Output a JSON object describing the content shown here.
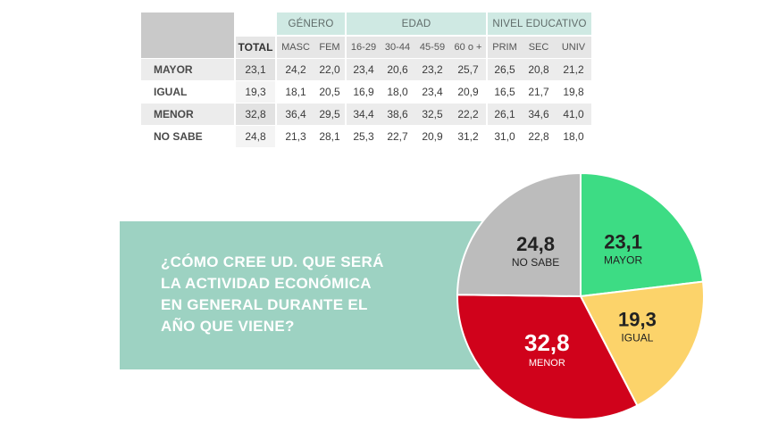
{
  "chart_data": [
    {
      "type": "table",
      "group_headers": [
        {
          "label": "GÉNERO",
          "span": 2
        },
        {
          "label": "EDAD",
          "span": 4
        },
        {
          "label": "NIVEL EDUCATIVO",
          "span": 3
        }
      ],
      "columns": [
        "TOTAL",
        "MASC",
        "FEM",
        "16-29",
        "30-44",
        "45-59",
        "60 o +",
        "PRIM",
        "SEC",
        "UNIV"
      ],
      "rows": [
        {
          "label": "MAYOR",
          "values": [
            "23,1",
            "24,2",
            "22,0",
            "23,4",
            "20,6",
            "23,2",
            "25,7",
            "26,5",
            "20,8",
            "21,2"
          ]
        },
        {
          "label": "IGUAL",
          "values": [
            "19,3",
            "18,1",
            "20,5",
            "16,9",
            "18,0",
            "23,4",
            "20,9",
            "16,5",
            "21,7",
            "19,8"
          ]
        },
        {
          "label": "MENOR",
          "values": [
            "32,8",
            "36,4",
            "29,5",
            "34,4",
            "38,6",
            "32,5",
            "22,2",
            "26,1",
            "34,6",
            "41,0"
          ]
        },
        {
          "label": "NO SABE",
          "values": [
            "24,8",
            "21,3",
            "28,1",
            "25,3",
            "22,7",
            "20,9",
            "31,2",
            "31,0",
            "22,8",
            "18,0"
          ]
        }
      ]
    },
    {
      "type": "pie",
      "title": "¿CÓMO CREE UD. QUE SERÁ LA ACTIVIDAD ECONÓMICA EN GENERAL DURANTE EL AÑO QUE VIENE?",
      "slices": [
        {
          "label": "MAYOR",
          "value": 23.1,
          "display": "23,1",
          "color": "#3ddc84",
          "text_color": "#222222"
        },
        {
          "label": "IGUAL",
          "value": 19.3,
          "display": "19,3",
          "color": "#fcd36a",
          "text_color": "#222222"
        },
        {
          "label": "MENOR",
          "value": 32.8,
          "display": "32,8",
          "color": "#d0021b",
          "text_color": "#ffffff"
        },
        {
          "label": "NO SABE",
          "value": 24.8,
          "display": "24,8",
          "color": "#bcbcbc",
          "text_color": "#222222"
        }
      ]
    }
  ],
  "question": {
    "lines": [
      "¿CÓMO CREE UD. QUE SERÁ",
      "LA ACTIVIDAD ECONÓMICA",
      "EN GENERAL DURANTE EL",
      "AÑO QUE VIENE?"
    ]
  },
  "colors": {
    "banner": "#9dd2c2",
    "group_header": "#cfe9e3"
  }
}
